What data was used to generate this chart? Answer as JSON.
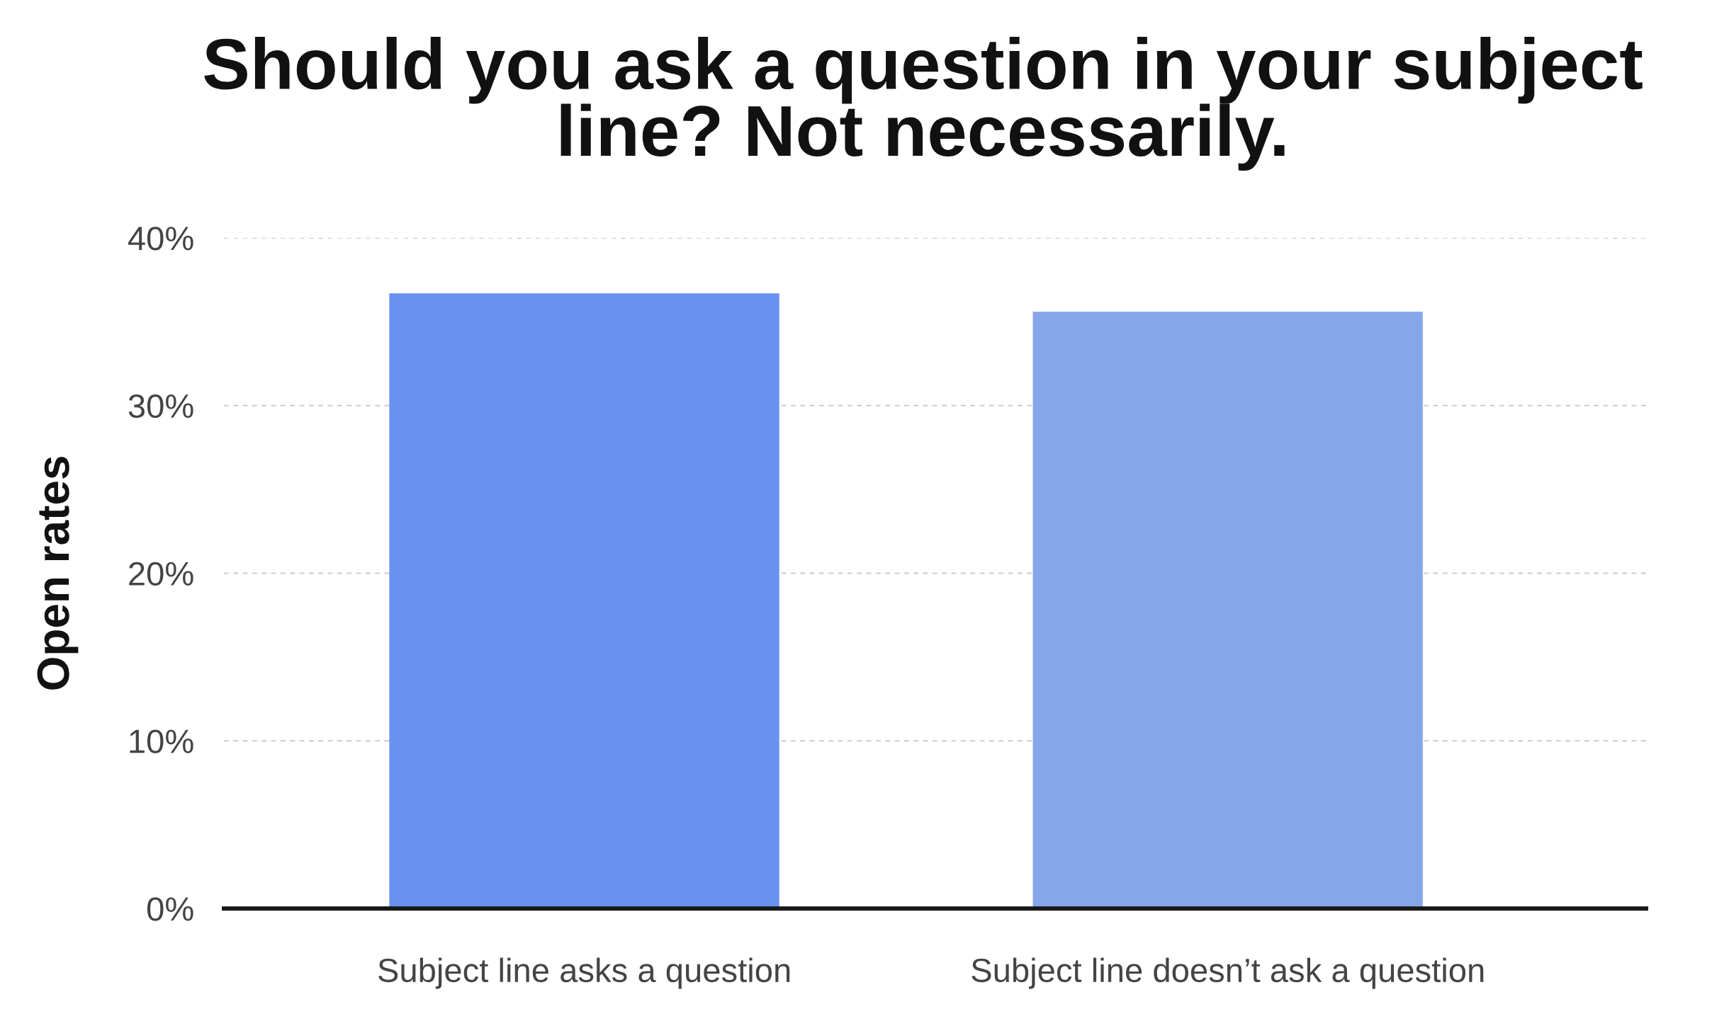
{
  "chart_data": {
    "type": "bar",
    "title": "Should you ask a question in your subject line? Not necessarily.",
    "ylabel": "Open rates",
    "categories": [
      "Subject line asks a question",
      "Subject line doesn’t ask a question"
    ],
    "values": [
      36.7,
      35.6
    ],
    "colors": [
      "#6792f2",
      "#86a6ec"
    ],
    "ylim": [
      0,
      40
    ],
    "yticks": [
      {
        "value": 0,
        "label": "0%"
      },
      {
        "value": 10,
        "label": "10%"
      },
      {
        "value": 20,
        "label": "20%"
      },
      {
        "value": 30,
        "label": "30%"
      },
      {
        "value": 40,
        "label": "40%"
      }
    ],
    "grid": "y"
  }
}
